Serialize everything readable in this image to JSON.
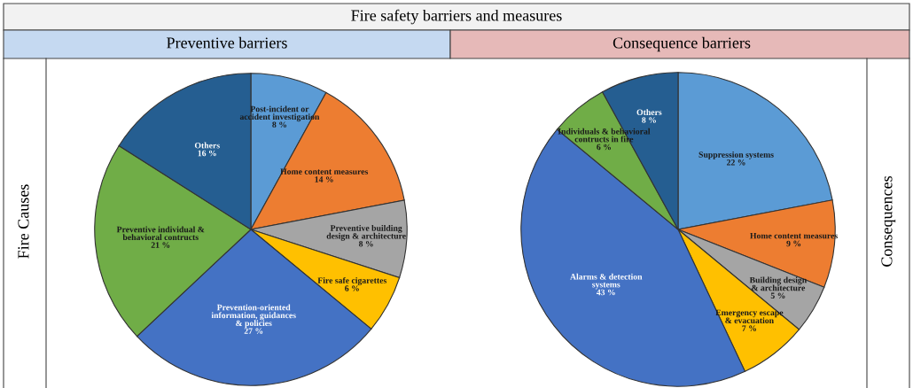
{
  "chart_data": [
    {
      "type": "pie",
      "title": "Preventive barriers",
      "annotations": [
        "Fire safety barriers and measures",
        "Fire Causes"
      ],
      "categories": [
        "Post-incident or\naccident investigation",
        "Home content measures",
        "Preventive building\ndesign & architecture",
        "Fire safe cigarettes",
        "Prevention-oriented\ninformation, guidances\n& policies",
        "Preventive individual &\nbehavioral contructs",
        "Others"
      ],
      "values": [
        8,
        14,
        8,
        6,
        27,
        21,
        16
      ],
      "value_labels": [
        "8 %",
        "14 %",
        "8 %",
        "6 %",
        "27 %",
        "21 %",
        "16 %"
      ],
      "colors": [
        "#5b9bd5",
        "#ed7d31",
        "#a5a5a5",
        "#ffc000",
        "#4472c4",
        "#70ad47",
        "#255e91"
      ]
    },
    {
      "type": "pie",
      "title": "Consequence barriers",
      "annotations": [
        "Consequences"
      ],
      "categories": [
        "Suppression systems",
        "Home content measures",
        "Building design\n& architecture",
        "Emergency escape\n& evacuation",
        "Alarms & detection\nsystems",
        "Individuals & behavioral\ncontructs in fire",
        "Others"
      ],
      "values": [
        22,
        9,
        5,
        7,
        43,
        6,
        8
      ],
      "value_labels": [
        "22 %",
        "9 %",
        "5 %",
        "7 %",
        "43 %",
        "6 %",
        "8 %"
      ],
      "colors": [
        "#5b9bd5",
        "#ed7d31",
        "#a5a5a5",
        "#ffc000",
        "#4472c4",
        "#70ad47",
        "#255e91"
      ]
    }
  ]
}
